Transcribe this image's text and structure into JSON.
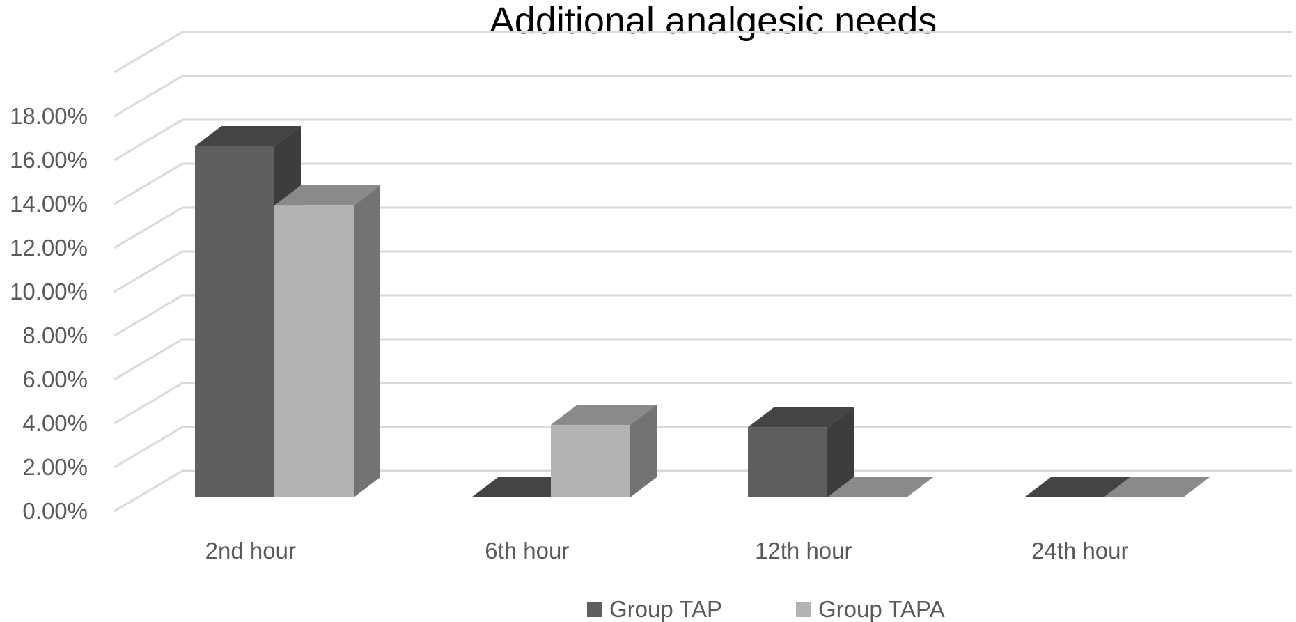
{
  "chart_data": {
    "type": "bar",
    "title": "Additional analgesic needs",
    "xlabel": "",
    "ylabel": "",
    "categories": [
      "2nd hour",
      "6th hour",
      "12th hour",
      "24th hour"
    ],
    "series": [
      {
        "name": "Group TAP",
        "values": [
          16.0,
          0.0,
          3.2,
          0.0
        ]
      },
      {
        "name": "Group TAPA",
        "values": [
          13.3,
          3.3,
          0.0,
          0.0
        ]
      }
    ],
    "ylim": [
      0,
      18
    ],
    "yticks": [
      0,
      2,
      4,
      6,
      8,
      10,
      12,
      14,
      16,
      18
    ],
    "ytick_labels": [
      "0.00%",
      "2.00%",
      "4.00%",
      "6.00%",
      "8.00%",
      "10.00%",
      "12.00%",
      "14.00%",
      "16.00%",
      "18.00%"
    ],
    "grid": true,
    "style": "3d-clustered-column",
    "legend_position": "bottom",
    "colors": {
      "series": [
        "#5f5f5f",
        "#b3b3b3"
      ],
      "series_top": [
        "#444444",
        "#8a8a8a"
      ],
      "series_side": [
        "#3d3d3d",
        "#737373"
      ],
      "grid": "#d9d9d9",
      "text": "#595959"
    }
  }
}
